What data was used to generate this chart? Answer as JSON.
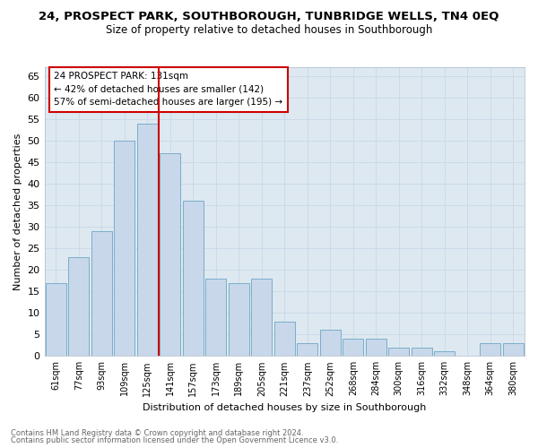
{
  "title": "24, PROSPECT PARK, SOUTHBOROUGH, TUNBRIDGE WELLS, TN4 0EQ",
  "subtitle": "Size of property relative to detached houses in Southborough",
  "xlabel": "Distribution of detached houses by size in Southborough",
  "ylabel": "Number of detached properties",
  "footnote1": "Contains HM Land Registry data © Crown copyright and database right 2024.",
  "footnote2": "Contains public sector information licensed under the Open Government Licence v3.0.",
  "annotation_line1": "24 PROSPECT PARK: 131sqm",
  "annotation_line2": "← 42% of detached houses are smaller (142)",
  "annotation_line3": "57% of semi-detached houses are larger (195) →",
  "bar_labels": [
    "61sqm",
    "77sqm",
    "93sqm",
    "109sqm",
    "125sqm",
    "141sqm",
    "157sqm",
    "173sqm",
    "189sqm",
    "205sqm",
    "221sqm",
    "237sqm",
    "252sqm",
    "268sqm",
    "284sqm",
    "300sqm",
    "316sqm",
    "332sqm",
    "348sqm",
    "364sqm",
    "380sqm"
  ],
  "bar_values": [
    17,
    23,
    29,
    50,
    54,
    47,
    36,
    18,
    17,
    18,
    8,
    3,
    6,
    4,
    4,
    2,
    2,
    1,
    0,
    3,
    3
  ],
  "bar_color": "#c8d8ea",
  "bar_edge_color": "#7aadcb",
  "vline_color": "#cc0000",
  "annotation_box_color": "#ffffff",
  "annotation_box_edge": "#cc0000",
  "ylim": [
    0,
    67
  ],
  "yticks": [
    0,
    5,
    10,
    15,
    20,
    25,
    30,
    35,
    40,
    45,
    50,
    55,
    60,
    65
  ],
  "grid_color": "#c8d8ea",
  "fig_background": "#ffffff",
  "ax_background": "#dde8f0"
}
